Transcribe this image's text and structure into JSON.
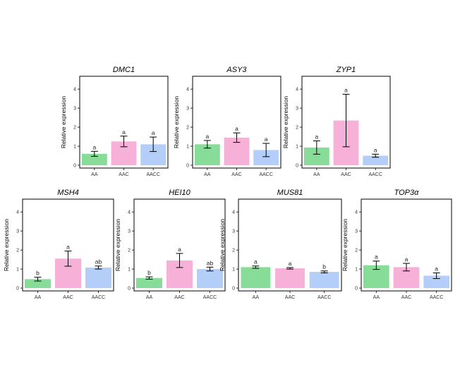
{
  "chart_data": [
    {
      "type": "bar",
      "title": "DMC1",
      "ylabel": "Relative expression",
      "ylim": [
        0,
        4.6
      ],
      "yticks": [
        0,
        1,
        2,
        3,
        4
      ],
      "categories": [
        "AA",
        "AAC",
        "AACC"
      ],
      "values": [
        0.6,
        1.25,
        1.1
      ],
      "errors": [
        0.13,
        0.28,
        0.38
      ],
      "letters": [
        "a",
        "a",
        "a"
      ]
    },
    {
      "type": "bar",
      "title": "ASY3",
      "ylabel": "Relative expression",
      "ylim": [
        0,
        4.6
      ],
      "yticks": [
        0,
        1,
        2,
        3,
        4
      ],
      "categories": [
        "AA",
        "AAC",
        "AACC"
      ],
      "values": [
        1.1,
        1.45,
        0.8
      ],
      "errors": [
        0.2,
        0.25,
        0.35
      ],
      "letters": [
        "a",
        "a",
        "a"
      ]
    },
    {
      "type": "bar",
      "title": "ZYP1",
      "ylabel": "Relative expression",
      "ylim": [
        0,
        4.6
      ],
      "yticks": [
        0,
        1,
        2,
        3,
        4
      ],
      "categories": [
        "AA",
        "AAC",
        "AACC"
      ],
      "values": [
        0.93,
        2.35,
        0.5
      ],
      "errors": [
        0.35,
        1.38,
        0.08
      ],
      "letters": [
        "a",
        "a",
        "a"
      ]
    },
    {
      "type": "bar",
      "title": "MSH4",
      "ylabel": "Relative expression",
      "ylim": [
        0,
        4.6
      ],
      "yticks": [
        0,
        1,
        2,
        3,
        4
      ],
      "categories": [
        "AA",
        "AAC",
        "AACC"
      ],
      "values": [
        0.47,
        1.55,
        1.08
      ],
      "errors": [
        0.1,
        0.4,
        0.08
      ],
      "letters": [
        "b",
        "a",
        "ab"
      ]
    },
    {
      "type": "bar",
      "title": "HEI10",
      "ylabel": "Relative expression",
      "ylim": [
        0,
        4.6
      ],
      "yticks": [
        0,
        1,
        2,
        3,
        4
      ],
      "categories": [
        "AA",
        "AAC",
        "AACC"
      ],
      "values": [
        0.53,
        1.45,
        1.0
      ],
      "errors": [
        0.06,
        0.37,
        0.1
      ],
      "letters": [
        "b",
        "a",
        "ab"
      ]
    },
    {
      "type": "bar",
      "title": "MUS81",
      "ylabel": "Relative expression",
      "ylim": [
        0,
        4.6
      ],
      "yticks": [
        0,
        1,
        2,
        3,
        4
      ],
      "categories": [
        "AA",
        "AAC",
        "AACC"
      ],
      "values": [
        1.1,
        1.04,
        0.85
      ],
      "errors": [
        0.06,
        0.04,
        0.05
      ],
      "letters": [
        "a",
        "a",
        "b"
      ]
    },
    {
      "type": "bar",
      "title": "TOP3α",
      "ylabel": "Relative expression",
      "ylim": [
        0,
        4.6
      ],
      "yticks": [
        0,
        1,
        2,
        3,
        4
      ],
      "categories": [
        "AA",
        "AAC",
        "AACC"
      ],
      "values": [
        1.2,
        1.1,
        0.65
      ],
      "errors": [
        0.22,
        0.2,
        0.15
      ],
      "letters": [
        "a",
        "a",
        "a"
      ]
    }
  ],
  "colors": {
    "AA": "#87dc97",
    "AAC": "#f7b0d8",
    "AACC": "#b3cef9",
    "error": "#000000",
    "axis": "#000000"
  }
}
